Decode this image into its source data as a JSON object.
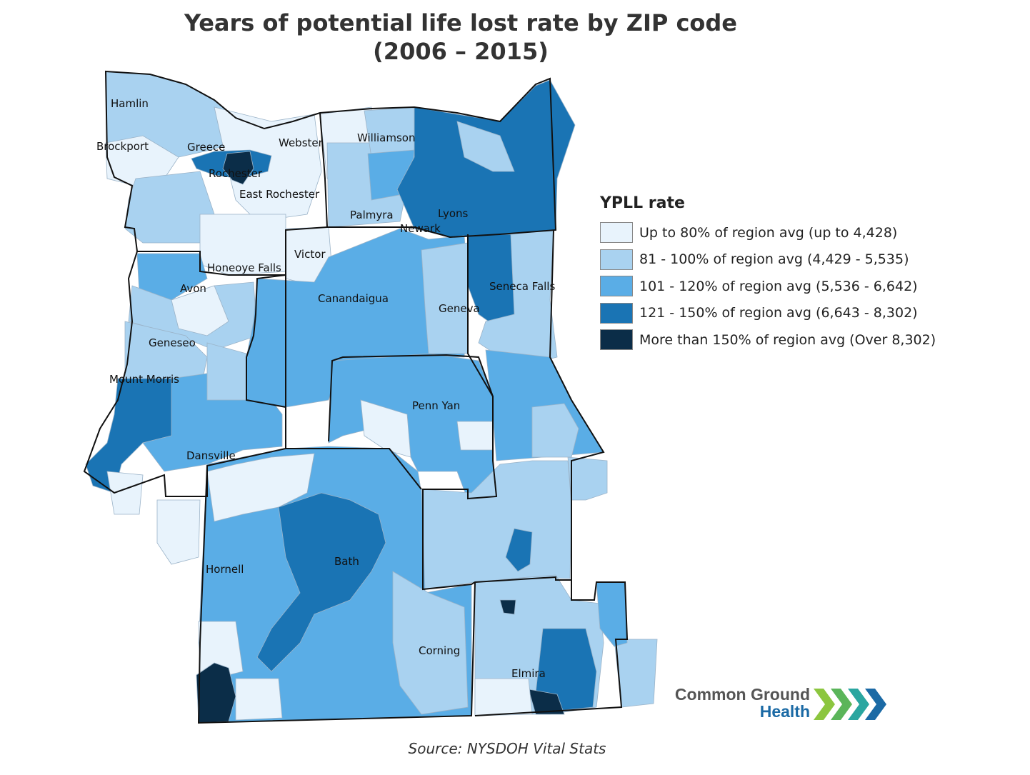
{
  "title": {
    "line1": "Years of potential life lost rate by ZIP code",
    "line2": "(2006 – 2015)"
  },
  "legend": {
    "title": "YPLL rate",
    "items": [
      {
        "label": "Up to 80% of region avg (up to 4,428)",
        "color": "#e8f3fc"
      },
      {
        "label": "81 - 100% of region avg (4,429 - 5,535)",
        "color": "#a9d2f0"
      },
      {
        "label": "101 - 120% of region avg (5,536 - 6,642)",
        "color": "#5aade6"
      },
      {
        "label": "121 - 150% of region avg (6,643 - 8,302)",
        "color": "#1a74b4"
      },
      {
        "label": "More than 150% of region avg (Over 8,302)",
        "color": "#0b2d48"
      }
    ]
  },
  "cities": {
    "hamlin": "Hamlin",
    "brockport": "Brockport",
    "greece": "Greece",
    "webster": "Webster",
    "williamson": "Williamson",
    "rochester": "Rochester",
    "east_rochester": "East Rochester",
    "palmyra": "Palmyra",
    "lyons": "Lyons",
    "newark": "Newark",
    "victor": "Victor",
    "honeoye_falls": "Honeoye Falls",
    "avon": "Avon",
    "canandaigua": "Canandaigua",
    "seneca_falls": "Seneca Falls",
    "geneva": "Geneva",
    "geneseo": "Geneseo",
    "mount_morris": "Mount Morris",
    "penn_yan": "Penn Yan",
    "dansville": "Dansville",
    "hornell": "Hornell",
    "bath": "Bath",
    "corning": "Corning",
    "elmira": "Elmira"
  },
  "source": "Source: NYSDOH Vital Stats",
  "logo": {
    "line1": "Common Ground",
    "line2": "Health",
    "colors": [
      "#8cc63f",
      "#5bb55a",
      "#2aa6a0",
      "#1b6aa5"
    ]
  }
}
